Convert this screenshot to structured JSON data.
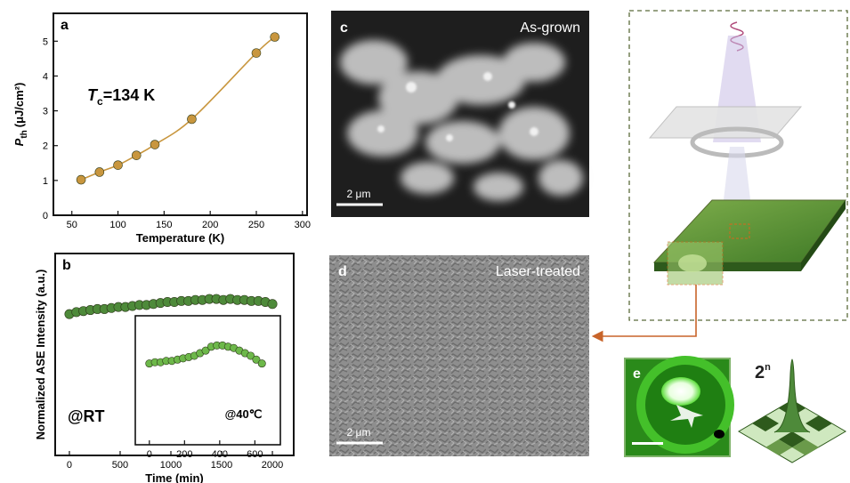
{
  "chart_data": [
    {
      "type": "scatter",
      "label": "a",
      "xlabel": "Temperature (K)",
      "ylabel": {
        "main": "P",
        "sub": "th",
        "unit": "(μJ/cm²)"
      },
      "annotation": {
        "main": "T",
        "sub": "c",
        "rest": "=134 K"
      },
      "x": [
        60,
        80,
        100,
        120,
        140,
        180,
        250,
        270
      ],
      "series": [
        {
          "color": "#c8963e",
          "values": [
            1.02,
            1.24,
            1.44,
            1.72,
            2.03,
            2.76,
            4.66,
            5.12
          ]
        }
      ],
      "fit": true,
      "xlim": [
        30,
        305
      ],
      "xticks": [
        50,
        100,
        150,
        200,
        250,
        300
      ],
      "ylim": [
        0,
        5.8
      ],
      "yticks": [
        0,
        1,
        2,
        3,
        4,
        5
      ]
    },
    {
      "type": "scatter",
      "label": "b",
      "xlabel": "Time (min)",
      "ylabel": "Normalized ASE Intensity (a.u.)",
      "annotation": "@RT",
      "x": [
        0,
        69,
        138,
        207,
        276,
        345,
        414,
        483,
        552,
        621,
        690,
        759,
        828,
        897,
        966,
        1034,
        1103,
        1172,
        1241,
        1310,
        1379,
        1448,
        1517,
        1586,
        1655,
        1724,
        1793,
        1862,
        1931,
        2000
      ],
      "series": [
        {
          "color": "#4e8a3a",
          "values": [
            0.7,
            0.71,
            0.715,
            0.72,
            0.725,
            0.725,
            0.73,
            0.735,
            0.735,
            0.74,
            0.745,
            0.745,
            0.75,
            0.755,
            0.76,
            0.76,
            0.765,
            0.765,
            0.77,
            0.77,
            0.775,
            0.775,
            0.77,
            0.775,
            0.77,
            0.77,
            0.765,
            0.765,
            0.76,
            0.75
          ]
        }
      ],
      "xlim": [
        -140,
        2210
      ],
      "xticks": [
        0,
        500,
        1000,
        1500,
        2000
      ],
      "ylim": [
        0,
        1
      ],
      "inset": {
        "annotation": "@40℃",
        "x": [
          0,
          32,
          64,
          96,
          128,
          160,
          192,
          224,
          256,
          288,
          320,
          352,
          384,
          416,
          448,
          480,
          512,
          544,
          576,
          608,
          640
        ],
        "series": [
          {
            "color": "#6db84a",
            "values": [
              0.63,
              0.64,
              0.64,
              0.65,
              0.65,
              0.66,
              0.67,
              0.68,
              0.69,
              0.71,
              0.73,
              0.76,
              0.77,
              0.77,
              0.76,
              0.75,
              0.73,
              0.71,
              0.69,
              0.66,
              0.63
            ]
          }
        ],
        "xlim": [
          -80,
          745
        ],
        "xticks": [
          0,
          200,
          400,
          600
        ],
        "ylim": [
          0,
          1
        ]
      }
    }
  ],
  "panels": {
    "c": {
      "label": "c",
      "title": "As-grown",
      "scale_bar": "2 μm"
    },
    "d": {
      "label": "d",
      "title": "Laser-treated",
      "scale_bar": "2 μm"
    },
    "e": {
      "label": "e"
    },
    "mode": {
      "base": "2",
      "exponent": "n"
    }
  }
}
